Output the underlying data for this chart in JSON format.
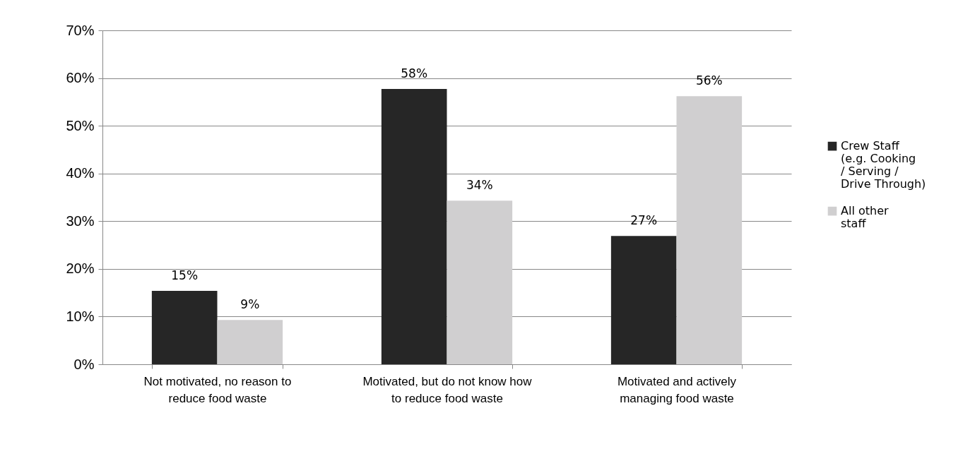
{
  "chart_data": {
    "type": "bar",
    "categories": [
      "Not motivated, no reason to reduce food waste",
      "Motivated, but do not know how to reduce food waste",
      "Motivated and actively managing food waste"
    ],
    "series": [
      {
        "name": "Crew Staff (e.g. Cooking / Serving / Drive Through)",
        "color": "#262626",
        "values": [
          15.4,
          57.7,
          26.9
        ],
        "value_labels": [
          "15%",
          "58%",
          "27%"
        ]
      },
      {
        "name": "All other staff",
        "color": "#d0cfd0",
        "values": [
          9.3,
          34.3,
          56.2
        ],
        "value_labels": [
          "9%",
          "34%",
          "56%"
        ]
      }
    ],
    "ylim": [
      0,
      70
    ],
    "yticks": [
      {
        "value": 0,
        "label": "0%"
      },
      {
        "value": 10,
        "label": "10%"
      },
      {
        "value": 20,
        "label": "20%"
      },
      {
        "value": 30,
        "label": "30%"
      },
      {
        "value": 40,
        "label": "40%"
      },
      {
        "value": 50,
        "label": "50%"
      },
      {
        "value": 60,
        "label": "60%"
      },
      {
        "value": 70,
        "label": "70%"
      }
    ],
    "grid": "y",
    "legend": "right"
  }
}
